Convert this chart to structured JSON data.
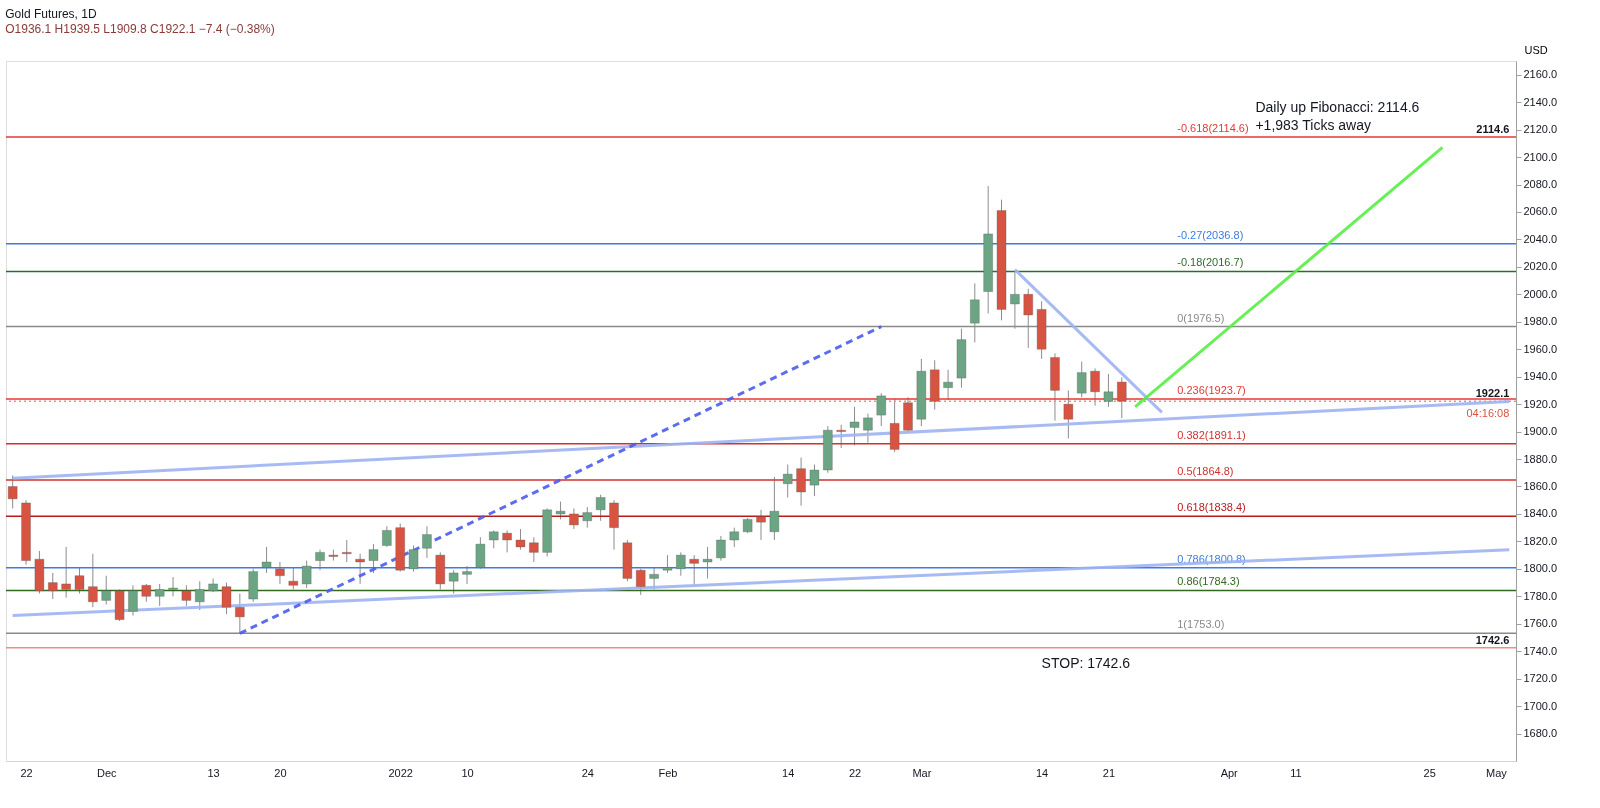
{
  "chart_data": {
    "type": "candlestick",
    "title": "Gold Futures, 1D",
    "subtitle": "O1936.1  H1939.5  L1909.8  C1922.1  −7.4 (−0.38%)",
    "ylabel": "USD",
    "categories": [
      null,
      "22",
      null,
      null,
      null,
      null,
      null,
      "Dec",
      null,
      null,
      null,
      null,
      null,
      null,
      null,
      "13",
      null,
      null,
      null,
      null,
      "20",
      null,
      null,
      null,
      null,
      null,
      null,
      null,
      null,
      "2022",
      null,
      null,
      null,
      null,
      "10",
      null,
      null,
      null,
      null,
      null,
      null,
      null,
      null,
      "24",
      null,
      null,
      null,
      null,
      null,
      "Feb",
      null,
      null,
      null,
      null,
      null,
      null,
      null,
      null,
      "14",
      null,
      null,
      null,
      null,
      "22",
      null,
      null,
      null,
      null,
      "Mar",
      null,
      null,
      null,
      null,
      null,
      null,
      null,
      null,
      "14",
      null,
      null,
      null,
      null,
      "21",
      null,
      null,
      null,
      null,
      null,
      null,
      null,
      null,
      "Apr",
      null,
      null,
      null,
      null,
      "11",
      null,
      null,
      null,
      null,
      null,
      null,
      null,
      null,
      null,
      "25",
      null,
      null,
      null,
      null,
      "May",
      null
    ],
    "ohlc": [
      [
        1860,
        1868,
        1844,
        1851
      ],
      [
        1848,
        1850,
        1803,
        1806
      ],
      [
        1807,
        1813,
        1782,
        1784
      ],
      [
        1790,
        1797,
        1778,
        1784
      ],
      [
        1789,
        1816,
        1779,
        1785
      ],
      [
        1795,
        1801,
        1782,
        1785
      ],
      [
        1787,
        1811,
        1772,
        1776
      ],
      [
        1777,
        1795,
        1774,
        1784
      ],
      [
        1784,
        1785,
        1762,
        1763
      ],
      [
        1769,
        1788,
        1766,
        1784
      ],
      [
        1788,
        1789,
        1776,
        1780
      ],
      [
        1780,
        1789,
        1773,
        1785
      ],
      [
        1785,
        1794,
        1780,
        1786
      ],
      [
        1784,
        1788,
        1773,
        1777
      ],
      [
        1776,
        1791,
        1770,
        1785
      ],
      [
        1784,
        1793,
        1783,
        1789
      ],
      [
        1787,
        1790,
        1767,
        1772
      ],
      [
        1772,
        1782,
        1753,
        1765
      ],
      [
        1778,
        1800,
        1776,
        1798
      ],
      [
        1801,
        1816,
        1797,
        1805
      ],
      [
        1800,
        1805,
        1789,
        1795
      ],
      [
        1791,
        1801,
        1785,
        1788
      ],
      [
        1789,
        1806,
        1786,
        1802
      ],
      [
        1806,
        1814,
        1799,
        1812
      ],
      [
        1810,
        1814,
        1806,
        1809
      ],
      [
        1812,
        1821,
        1805,
        1811
      ],
      [
        1807,
        1811,
        1789,
        1805
      ],
      [
        1806,
        1818,
        1797,
        1814
      ],
      [
        1817,
        1831,
        1816,
        1828
      ],
      [
        1830,
        1833,
        1798,
        1799
      ],
      [
        1800,
        1817,
        1798,
        1814
      ],
      [
        1815,
        1831,
        1808,
        1825
      ],
      [
        1810,
        1812,
        1785,
        1789
      ],
      [
        1791,
        1799,
        1782,
        1797
      ],
      [
        1796,
        1802,
        1789,
        1798
      ],
      [
        1801,
        1823,
        1800,
        1818
      ],
      [
        1821,
        1828,
        1815,
        1827
      ],
      [
        1826,
        1828,
        1812,
        1821
      ],
      [
        1821,
        1829,
        1814,
        1816
      ],
      [
        1819,
        1823,
        1805,
        1812
      ],
      [
        1812,
        1844,
        1809,
        1843
      ],
      [
        1840,
        1849,
        1836,
        1842
      ],
      [
        1840,
        1844,
        1829,
        1832
      ],
      [
        1835,
        1845,
        1830,
        1841
      ],
      [
        1843,
        1854,
        1835,
        1852
      ],
      [
        1848,
        1850,
        1814,
        1830
      ],
      [
        1819,
        1821,
        1791,
        1793
      ],
      [
        1799,
        1800,
        1781,
        1787
      ],
      [
        1793,
        1801,
        1785,
        1796
      ],
      [
        1799,
        1810,
        1797,
        1801
      ],
      [
        1800,
        1812,
        1795,
        1810
      ],
      [
        1807,
        1810,
        1789,
        1804
      ],
      [
        1805,
        1816,
        1793,
        1807
      ],
      [
        1808,
        1824,
        1806,
        1821
      ],
      [
        1821,
        1830,
        1816,
        1827
      ],
      [
        1827,
        1837,
        1826,
        1836
      ],
      [
        1838,
        1843,
        1821,
        1834
      ],
      [
        1827,
        1867,
        1821,
        1842
      ],
      [
        1862,
        1876,
        1852,
        1869
      ],
      [
        1873,
        1881,
        1846,
        1856
      ],
      [
        1861,
        1876,
        1853,
        1872
      ],
      [
        1872,
        1904,
        1870,
        1901
      ],
      [
        1901,
        1905,
        1888,
        1900
      ],
      [
        1903,
        1918,
        1890,
        1907
      ],
      [
        1901,
        1913,
        1892,
        1910
      ],
      [
        1912,
        1928,
        1904,
        1926
      ],
      [
        1906,
        1924,
        1885,
        1887
      ],
      [
        1921,
        1925,
        1900,
        1901
      ],
      [
        1909,
        1953,
        1904,
        1944
      ],
      [
        1945,
        1952,
        1916,
        1922
      ],
      [
        1932,
        1945,
        1923,
        1936
      ],
      [
        1939,
        1975,
        1932,
        1967
      ],
      [
        1979,
        2008,
        1965,
        1996
      ],
      [
        2002,
        2079,
        1986,
        2044
      ],
      [
        2061,
        2069,
        1981,
        1989
      ],
      [
        1993,
        2016,
        1975,
        2000
      ],
      [
        2000,
        2004,
        1961,
        1985
      ],
      [
        1989,
        1995,
        1953,
        1960
      ],
      [
        1954,
        1957,
        1908,
        1930
      ],
      [
        1920,
        1930,
        1895,
        1909
      ],
      [
        1928,
        1951,
        1925,
        1943
      ],
      [
        1944,
        1946,
        1919,
        1929
      ],
      [
        1922,
        1942,
        1918,
        1929
      ],
      [
        1936.1,
        1939.5,
        1909.8,
        1922.1
      ],
      null,
      null,
      null,
      null,
      null,
      null,
      null,
      null,
      null,
      null,
      null,
      null,
      null,
      null,
      null,
      null,
      null,
      null,
      null,
      null,
      null,
      null,
      null,
      null,
      null,
      null,
      null,
      null,
      null
    ],
    "colors": [
      "#d75442",
      "#d75442",
      "#d75442",
      "#d75442",
      "#d75442",
      "#d75442",
      "#d75442",
      "#6ba583",
      "#d75442",
      "#6ba583",
      "#d75442",
      "#6ba583",
      "#6ba583",
      "#d75442",
      "#6ba583",
      "#6ba583",
      "#d75442",
      "#d75442",
      "#6ba583",
      "#6ba583",
      "#d75442",
      "#d75442",
      "#6ba583",
      "#6ba583",
      "#d75442",
      "#d75442",
      "#d75442",
      "#6ba583",
      "#6ba583",
      "#d75442",
      "#6ba583",
      "#6ba583",
      "#d75442",
      "#6ba583",
      "#6ba583",
      "#6ba583",
      "#6ba583",
      "#d75442",
      "#d75442",
      "#d75442",
      "#6ba583",
      "#6ba583",
      "#d75442",
      "#6ba583",
      "#6ba583",
      "#d75442",
      "#d75442",
      "#d75442",
      "#6ba583",
      "#6ba583",
      "#6ba583",
      "#d75442",
      "#6ba583",
      "#6ba583",
      "#6ba583",
      "#6ba583",
      "#d75442",
      "#6ba583",
      "#6ba583",
      "#d75442",
      "#6ba583",
      "#6ba583",
      "#d75442",
      "#6ba583",
      "#6ba583",
      "#6ba583",
      "#d75442",
      "#d75442",
      "#6ba583",
      "#d75442",
      "#6ba583",
      "#6ba583",
      "#6ba583",
      "#6ba583",
      "#d75442",
      "#6ba583",
      "#d75442",
      "#d75442",
      "#d75442",
      "#d75442",
      "#6ba583",
      "#d75442",
      "#6ba583",
      "#d75442",
      null,
      null,
      null,
      null,
      null,
      null,
      null,
      null,
      null,
      null,
      null,
      null,
      null,
      null,
      null,
      null,
      null,
      null,
      null,
      null,
      null,
      null,
      null,
      null,
      null,
      null,
      null,
      null,
      null
    ],
    "series": [
      {
        "type": "line",
        "color": "#9db2f2",
        "values": [
          1866,
          null,
          null,
          null,
          null,
          null,
          null,
          null,
          null,
          null,
          null,
          null,
          null,
          null,
          null,
          null,
          null,
          null,
          null,
          null,
          null,
          null,
          null,
          null,
          null,
          null,
          null,
          null,
          null,
          null,
          null,
          null,
          null,
          null,
          null,
          null,
          null,
          null,
          null,
          null,
          null,
          null,
          null,
          null,
          null,
          null,
          null,
          null,
          null,
          null,
          null,
          null,
          null,
          null,
          null,
          null,
          null,
          null,
          null,
          null,
          null,
          null,
          null,
          null,
          null,
          null,
          null,
          null,
          null,
          null,
          null,
          null,
          null,
          null,
          null,
          null,
          null,
          null,
          null,
          null,
          null,
          null,
          null,
          null,
          null,
          null,
          null,
          null,
          null,
          null,
          null,
          null,
          null,
          null,
          null,
          null,
          null,
          null,
          null,
          null,
          null,
          null,
          null,
          null,
          null,
          null,
          null,
          null,
          null,
          null,
          null,
          null,
          1922
        ]
      },
      {
        "type": "line",
        "color": "#9db2f2",
        "values": [
          1766,
          null,
          null,
          null,
          null,
          null,
          null,
          null,
          null,
          null,
          null,
          null,
          null,
          null,
          null,
          null,
          null,
          null,
          null,
          null,
          null,
          null,
          null,
          null,
          null,
          null,
          null,
          null,
          null,
          null,
          null,
          null,
          null,
          null,
          null,
          null,
          null,
          null,
          null,
          null,
          null,
          null,
          null,
          null,
          null,
          null,
          null,
          null,
          null,
          null,
          null,
          null,
          null,
          null,
          null,
          null,
          null,
          null,
          null,
          null,
          null,
          null,
          null,
          null,
          null,
          null,
          null,
          null,
          null,
          null,
          null,
          null,
          null,
          null,
          null,
          null,
          null,
          null,
          null,
          null,
          null,
          null,
          null,
          null,
          null,
          null,
          null,
          null,
          null,
          null,
          null,
          null,
          null,
          null,
          null,
          null,
          null,
          null,
          null,
          null,
          null,
          null,
          null,
          null,
          null,
          null,
          null,
          null,
          null,
          null,
          null,
          null,
          1814
        ]
      },
      {
        "type": "line",
        "color": "#9db2f2",
        "values": [
          null,
          null,
          null,
          null,
          null,
          null,
          null,
          null,
          null,
          null,
          null,
          null,
          null,
          null,
          null,
          null,
          null,
          null,
          null,
          null,
          null,
          null,
          null,
          null,
          null,
          null,
          null,
          null,
          null,
          null,
          null,
          null,
          null,
          null,
          null,
          null,
          null,
          null,
          null,
          null,
          null,
          null,
          null,
          null,
          null,
          null,
          null,
          null,
          null,
          null,
          null,
          null,
          null,
          null,
          null,
          null,
          null,
          null,
          null,
          null,
          null,
          null,
          null,
          null,
          null,
          null,
          null,
          null,
          null,
          null,
          null,
          null,
          null,
          null,
          null,
          2018,
          null,
          null,
          null,
          null,
          null,
          null,
          null,
          null,
          null,
          null,
          1914,
          null,
          null,
          null,
          null,
          null,
          null,
          null,
          null,
          null,
          null,
          null,
          null,
          null,
          null,
          null,
          null,
          null,
          null,
          null,
          null,
          null,
          null,
          null,
          null,
          null,
          null
        ]
      },
      {
        "type": "line",
        "color": "#4a5cf0",
        "line_style": "dashed",
        "values": [
          null,
          null,
          null,
          null,
          null,
          null,
          null,
          null,
          null,
          null,
          null,
          null,
          null,
          null,
          null,
          null,
          null,
          1753,
          null,
          null,
          null,
          null,
          null,
          null,
          null,
          null,
          null,
          null,
          null,
          null,
          null,
          null,
          null,
          null,
          null,
          null,
          null,
          null,
          null,
          null,
          null,
          null,
          null,
          null,
          null,
          null,
          null,
          null,
          null,
          null,
          null,
          null,
          null,
          null,
          null,
          null,
          null,
          null,
          null,
          null,
          null,
          null,
          null,
          null,
          null,
          1976.5,
          null,
          null,
          null,
          null,
          null,
          null,
          null,
          null,
          null,
          null,
          null,
          null,
          null,
          null,
          null,
          null,
          null,
          null,
          null,
          null,
          null,
          null,
          null,
          null,
          null,
          null,
          null,
          null,
          null,
          null,
          null,
          null,
          null,
          null,
          null,
          null,
          null,
          null,
          null,
          null,
          null,
          null,
          null,
          null,
          null,
          null,
          null
        ]
      },
      {
        "type": "line",
        "color": "#55ee44",
        "values": [
          null,
          null,
          null,
          null,
          null,
          null,
          null,
          null,
          null,
          null,
          null,
          null,
          null,
          null,
          null,
          null,
          null,
          null,
          null,
          null,
          null,
          null,
          null,
          null,
          null,
          null,
          null,
          null,
          null,
          null,
          null,
          null,
          null,
          null,
          null,
          null,
          null,
          null,
          null,
          null,
          null,
          null,
          null,
          null,
          null,
          null,
          null,
          null,
          null,
          null,
          null,
          null,
          null,
          null,
          null,
          null,
          null,
          null,
          null,
          null,
          null,
          null,
          null,
          null,
          null,
          null,
          null,
          null,
          null,
          null,
          null,
          null,
          null,
          null,
          null,
          null,
          null,
          null,
          null,
          null,
          null,
          null,
          null,
          null,
          1918,
          null,
          null,
          null,
          null,
          null,
          null,
          null,
          null,
          null,
          null,
          null,
          null,
          null,
          null,
          null,
          null,
          null,
          null,
          null,
          null,
          null,
          null,
          2107,
          null,
          null,
          null,
          null,
          null
        ]
      }
    ],
    "ref_lines": [
      {
        "axis": "y",
        "value": 2114.6,
        "label": "-0.618(2114.6)",
        "color": "#e53935"
      },
      {
        "axis": "y",
        "value": 2036.8,
        "label": "-0.27(2036.8)",
        "color": "#3d7be0"
      },
      {
        "axis": "y",
        "value": 2016.7,
        "label": "-0.18(2016.7)",
        "color": "#2e6b2e"
      },
      {
        "axis": "y",
        "value": 1976.5,
        "label": "0(1976.5)",
        "color": "#8a8a8a"
      },
      {
        "axis": "y",
        "value": 1923.7,
        "label": "0.236(1923.7)",
        "color": "#e53935"
      },
      {
        "axis": "y",
        "value": 1891.1,
        "label": "0.382(1891.1)",
        "color": "#d32f2f"
      },
      {
        "axis": "y",
        "value": 1864.8,
        "label": "0.5(1864.8)",
        "color": "#d32f2f"
      },
      {
        "axis": "y",
        "value": 1838.4,
        "label": "0.618(1838.4)",
        "color": "#b71c1c"
      },
      {
        "axis": "y",
        "value": 1800.8,
        "label": "0.786(1800.8)",
        "color": "#3d7be0"
      },
      {
        "axis": "y",
        "value": 1784.3,
        "label": "0.86(1784.3)",
        "color": "#33691e"
      },
      {
        "axis": "y",
        "value": 1753.0,
        "label": "1(1753.0)",
        "color": "#8a8a8a"
      },
      {
        "axis": "y",
        "value": 1742.6,
        "color": "#f28b82"
      },
      {
        "axis": "y",
        "value": 1922.1,
        "color": "#f28b82",
        "line_style": "dotted"
      }
    ],
    "annotations": [
      "Daily up Fibonacci: 2114.6",
      "+1,983 Ticks away",
      "STOP: 1742.6",
      {
        "text": "2114.6",
        "y": 2114.6
      },
      {
        "text": "1922.1",
        "y": 1922.1
      },
      "04:16:08",
      {
        "text": "1742.6",
        "y": 1742.6
      }
    ],
    "ylim": [
      1660,
      2170
    ],
    "yticks": [
      {
        "value": 1680,
        "label": "1680.0"
      },
      {
        "value": 1700,
        "label": "1700.0"
      },
      {
        "value": 1720,
        "label": "1720.0"
      },
      {
        "value": 1740,
        "label": "1740.0"
      },
      {
        "value": 1760,
        "label": "1760.0"
      },
      {
        "value": 1780,
        "label": "1780.0"
      },
      {
        "value": 1800,
        "label": "1800.0"
      },
      {
        "value": 1820,
        "label": "1820.0"
      },
      {
        "value": 1840,
        "label": "1840.0"
      },
      {
        "value": 1860,
        "label": "1860.0"
      },
      {
        "value": 1880,
        "label": "1880.0"
      },
      {
        "value": 1900,
        "label": "1900.0"
      },
      {
        "value": 1920,
        "label": "1920.0"
      },
      {
        "value": 1940,
        "label": "1940.0"
      },
      {
        "value": 1960,
        "label": "1960.0"
      },
      {
        "value": 1980,
        "label": "1980.0"
      },
      {
        "value": 2000,
        "label": "2000.0"
      },
      {
        "value": 2020,
        "label": "2020.0"
      },
      {
        "value": 2040,
        "label": "2040.0"
      },
      {
        "value": 2060,
        "label": "2060.0"
      },
      {
        "value": 2080,
        "label": "2080.0"
      },
      {
        "value": 2100,
        "label": "2100.0"
      },
      {
        "value": 2120,
        "label": "2120.0"
      },
      {
        "value": 2140,
        "label": "2140.0"
      },
      {
        "value": 2160,
        "label": "2160.0"
      }
    ],
    "grid": false
  }
}
